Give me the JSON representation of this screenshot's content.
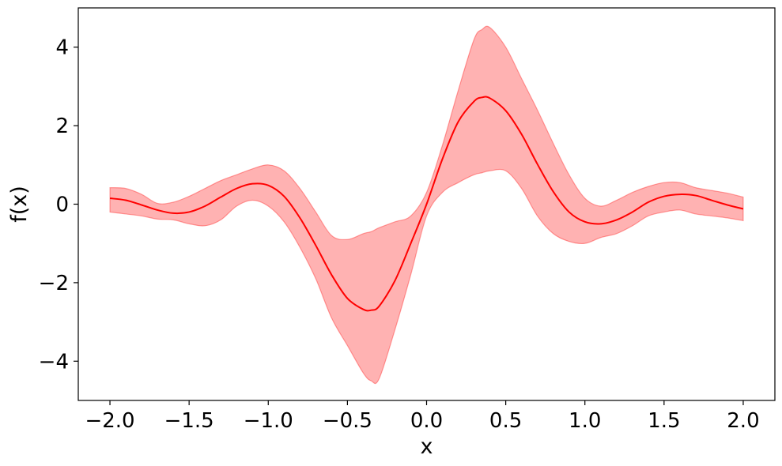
{
  "chart_data": {
    "type": "line",
    "title": "",
    "xlabel": "x",
    "ylabel": "f(x)",
    "xlim": [
      -2.2,
      2.2
    ],
    "ylim": [
      -5.0,
      5.0
    ],
    "x_ticks": [
      -2.0,
      -1.5,
      -1.0,
      -0.5,
      0.0,
      0.5,
      1.0,
      1.5,
      2.0
    ],
    "x_tick_labels": [
      "−2.0",
      "−1.5",
      "−1.0",
      "−0.5",
      "0.0",
      "0.5",
      "1.0",
      "1.5",
      "2.0"
    ],
    "y_ticks": [
      -4,
      -2,
      0,
      2,
      4
    ],
    "y_tick_labels": [
      "−4",
      "−2",
      "0",
      "2",
      "4"
    ],
    "grid": false,
    "colors": {
      "line": "#ff0000",
      "band_fill": "#ff0000",
      "band_opacity": 0.3
    },
    "x": [
      -2.0,
      -1.9,
      -1.8,
      -1.7,
      -1.6,
      -1.5,
      -1.4,
      -1.3,
      -1.2,
      -1.1,
      -1.0,
      -0.9,
      -0.8,
      -0.7,
      -0.6,
      -0.5,
      -0.4,
      -0.35,
      -0.3,
      -0.2,
      -0.1,
      0.0,
      0.1,
      0.2,
      0.3,
      0.35,
      0.4,
      0.5,
      0.6,
      0.7,
      0.8,
      0.9,
      1.0,
      1.1,
      1.2,
      1.3,
      1.4,
      1.5,
      1.6,
      1.7,
      1.8,
      1.9,
      2.0
    ],
    "mean": [
      0.15,
      0.1,
      -0.02,
      -0.15,
      -0.23,
      -0.2,
      -0.05,
      0.18,
      0.4,
      0.52,
      0.48,
      0.2,
      -0.35,
      -1.05,
      -1.8,
      -2.4,
      -2.68,
      -2.7,
      -2.6,
      -1.95,
      -1.0,
      0.0,
      1.15,
      2.1,
      2.62,
      2.72,
      2.7,
      2.38,
      1.78,
      1.02,
      0.32,
      -0.2,
      -0.45,
      -0.5,
      -0.4,
      -0.2,
      0.05,
      0.2,
      0.25,
      0.22,
      0.1,
      -0.02,
      -0.12
    ],
    "upper": [
      0.42,
      0.4,
      0.25,
      0.02,
      0.05,
      0.2,
      0.4,
      0.6,
      0.75,
      0.9,
      1.0,
      0.85,
      0.4,
      -0.2,
      -0.8,
      -0.9,
      -0.75,
      -0.7,
      -0.6,
      -0.45,
      -0.3,
      0.3,
      1.5,
      2.9,
      4.2,
      4.45,
      4.5,
      4.0,
      3.2,
      2.4,
      1.55,
      0.75,
      0.15,
      -0.05,
      0.1,
      0.3,
      0.45,
      0.55,
      0.55,
      0.42,
      0.35,
      0.28,
      0.18
    ],
    "lower": [
      -0.2,
      -0.25,
      -0.3,
      -0.38,
      -0.4,
      -0.5,
      -0.55,
      -0.4,
      -0.05,
      0.1,
      -0.05,
      -0.45,
      -1.1,
      -1.9,
      -2.9,
      -3.6,
      -4.3,
      -4.5,
      -4.45,
      -3.2,
      -1.8,
      -0.3,
      0.3,
      0.55,
      0.75,
      0.8,
      0.85,
      0.85,
      0.4,
      -0.3,
      -0.75,
      -0.95,
      -1.0,
      -0.85,
      -0.75,
      -0.55,
      -0.3,
      -0.2,
      -0.15,
      -0.25,
      -0.3,
      -0.35,
      -0.42
    ]
  }
}
